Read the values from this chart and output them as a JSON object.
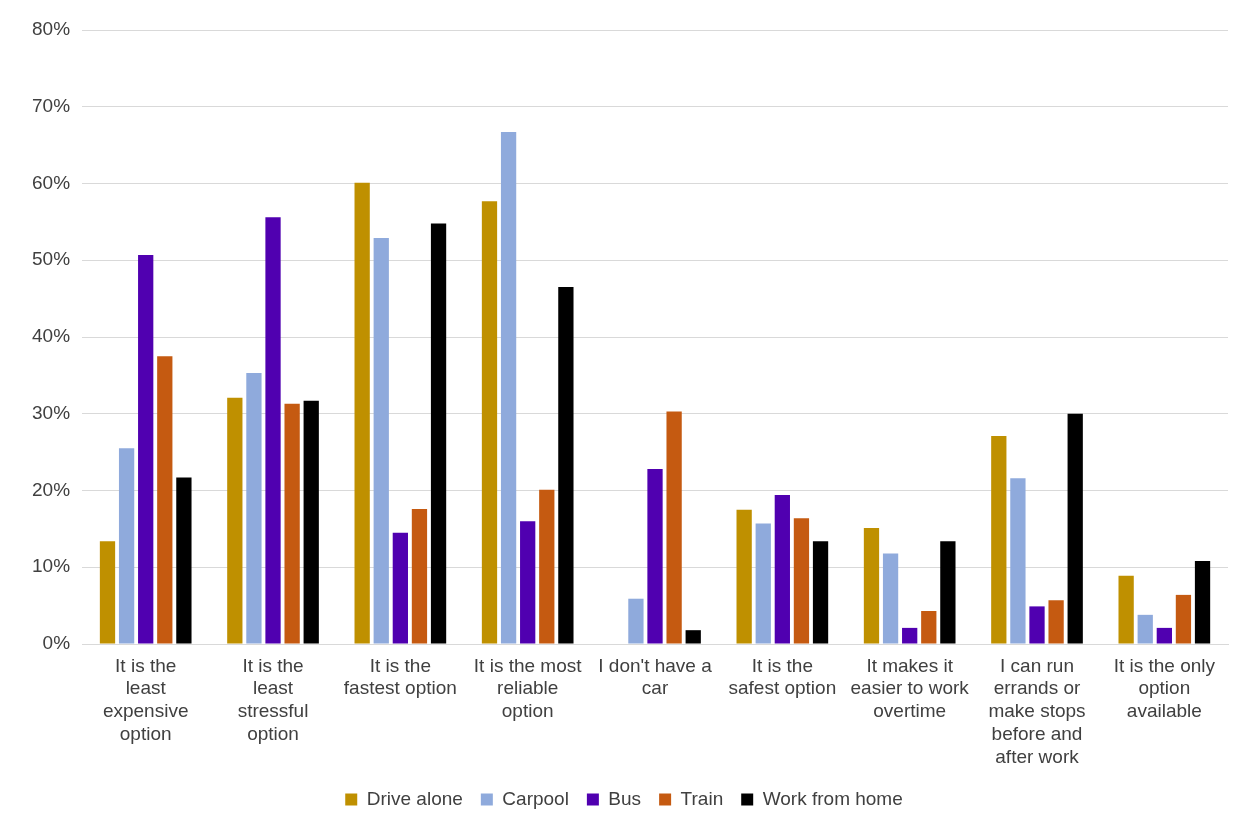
{
  "chart_data": {
    "type": "bar",
    "categories": [
      "It is the least expensive option",
      "It is the least stressful option",
      "It is the fastest option",
      "It is the most reliable option",
      "I don't have a car",
      "It is the safest option",
      "It makes it easier to work overtime",
      "I can run errands or make stops before and after work",
      "It is the only option available"
    ],
    "series": [
      {
        "name": "Drive alone",
        "color": "#bf9000",
        "values": [
          13.4,
          32.1,
          60.1,
          57.7,
          0,
          17.5,
          15.1,
          27.1,
          8.9
        ]
      },
      {
        "name": "Carpool",
        "color": "#8faadc",
        "values": [
          25.5,
          35.3,
          52.9,
          66.7,
          5.9,
          15.7,
          11.8,
          21.6,
          3.8
        ]
      },
      {
        "name": "Bus",
        "color": "#5000b0",
        "values": [
          50.7,
          55.6,
          14.5,
          16.0,
          22.8,
          19.4,
          2.1,
          4.9,
          2.1
        ]
      },
      {
        "name": "Train",
        "color": "#c55a11",
        "values": [
          37.5,
          31.3,
          17.6,
          20.1,
          30.3,
          16.4,
          4.3,
          5.7,
          6.4
        ]
      },
      {
        "name": "Work from home",
        "color": "#000000",
        "values": [
          21.7,
          31.7,
          54.8,
          46.5,
          1.8,
          13.4,
          13.4,
          30.0,
          10.8
        ]
      }
    ],
    "ylim": [
      0,
      80
    ],
    "yticks": [
      {
        "value": 0,
        "label": "0%"
      },
      {
        "value": 10,
        "label": "10%"
      },
      {
        "value": 20,
        "label": "20%"
      },
      {
        "value": 30,
        "label": "30%"
      },
      {
        "value": 40,
        "label": "40%"
      },
      {
        "value": 50,
        "label": "50%"
      },
      {
        "value": 60,
        "label": "60%"
      },
      {
        "value": 70,
        "label": "70%"
      },
      {
        "value": 80,
        "label": "80%"
      }
    ],
    "grid": "y",
    "legend": "bottom"
  }
}
